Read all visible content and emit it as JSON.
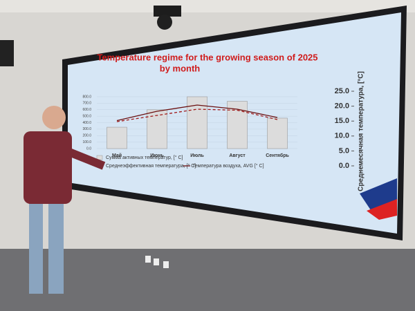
{
  "chart_data": {
    "type": "bar",
    "title": [
      "Temperature regime for the growing season of 2025",
      "by month"
    ],
    "categories": [
      "Май",
      "Июнь",
      "Июль",
      "Август",
      "Сентябрь"
    ],
    "series": [
      {
        "name": "Сумма активных температур, [° C]",
        "type": "bar",
        "color": "#dcdcdc",
        "values": [
          330,
          600,
          800,
          730,
          470
        ]
      },
      {
        "name": "Среднеэффективная температура, [° C]",
        "type": "line",
        "dash": true,
        "axis": "y2",
        "color": "#a01818",
        "values": [
          13,
          16,
          19,
          18.5,
          14
        ]
      },
      {
        "name": "Температура воздуха, AVG [° C]",
        "type": "line",
        "dash": false,
        "axis": "y2",
        "color": "#6b1010",
        "values": [
          13.5,
          18,
          21,
          19,
          15
        ]
      }
    ],
    "ylim": [
      0,
      800
    ],
    "yticks": [
      {
        "value": 0,
        "label": "0.0"
      },
      {
        "value": 100,
        "label": "100.0"
      },
      {
        "value": 200,
        "label": "200.0"
      },
      {
        "value": 300,
        "label": "300.0"
      },
      {
        "value": 400,
        "label": "400.0"
      },
      {
        "value": 500,
        "label": "500.0"
      },
      {
        "value": 600,
        "label": "600.0"
      },
      {
        "value": 700,
        "label": "700.0"
      },
      {
        "value": 800,
        "label": "800.0"
      }
    ],
    "y2lim": [
      0,
      25
    ],
    "y2ticks": [
      {
        "value": 0,
        "label": "0.0"
      },
      {
        "value": 5,
        "label": "5.0"
      },
      {
        "value": 10,
        "label": "10.0"
      },
      {
        "value": 15,
        "label": "15.0"
      },
      {
        "value": 20,
        "label": "20.0"
      },
      {
        "value": 25,
        "label": "25.0"
      }
    ],
    "y2label": "Среднемесячная температура, [°C]",
    "grid": true
  }
}
